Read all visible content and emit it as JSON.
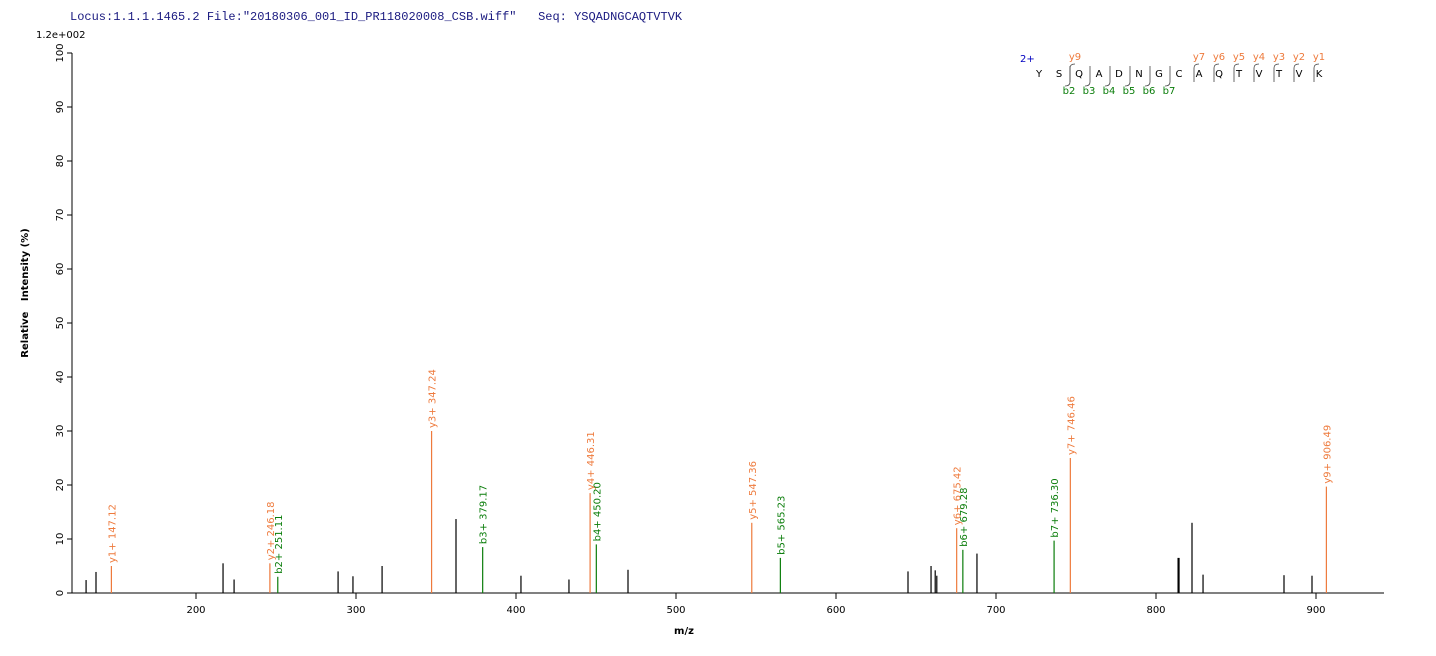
{
  "chart_data": {
    "type": "stem",
    "title": "Locus:1.1.1.1465.2 File:\"20180306_001_ID_PR118020008_CSB.wiff\"   Seq: YSQADNGCAQTVTVK",
    "scale_label": "1.2e+002",
    "xlabel": "m/z",
    "ylabel": "Relative   Intensity (%)",
    "xlim": [
      122.5,
      942.5
    ],
    "ylim": [
      0,
      100
    ],
    "xticks": [
      200,
      300,
      400,
      500,
      600,
      700,
      800,
      900
    ],
    "yticks": [
      0,
      10,
      20,
      30,
      40,
      50,
      60,
      70,
      80,
      90,
      100
    ],
    "series": [
      {
        "color": "#000000",
        "x": [
          131.3,
          137.5,
          216.9,
          223.8,
          288.8,
          298.1,
          316.3,
          362.5,
          403.1,
          433.1,
          470.0,
          645.0,
          659.4,
          662.0,
          663.0,
          688.1,
          813.8,
          814.4,
          822.5,
          829.4,
          880.0,
          897.5
        ],
        "values": [
          2.4,
          3.9,
          5.5,
          2.5,
          4.0,
          3.1,
          5.0,
          13.7,
          3.2,
          2.5,
          4.3,
          4.0,
          5.0,
          4.2,
          3.2,
          7.3,
          6.5,
          6.5,
          13.0,
          3.4,
          3.3,
          3.2
        ]
      },
      {
        "color": "#ee7a3c",
        "x": [
          147.12,
          246.18,
          347.24,
          446.31,
          547.36,
          675.42,
          746.46,
          906.49
        ],
        "values": [
          5.0,
          5.5,
          30.0,
          18.5,
          13.0,
          12.0,
          25.0,
          19.7
        ],
        "peak_labels": [
          "y1+ 147.12",
          "y2+ 246.18",
          "y3+ 347.24",
          "y4+ 446.31",
          "y5+ 547.36",
          "y6+ 675.42",
          "y7+ 746.46",
          "y9+ 906.49"
        ]
      },
      {
        "color": "#0a7d0a",
        "x": [
          251.11,
          379.17,
          450.2,
          565.23,
          679.28,
          736.3
        ],
        "values": [
          3.0,
          8.5,
          9.0,
          6.5,
          8.0,
          9.7
        ],
        "peak_labels": [
          "b2+ 251.11",
          "b3+ 379.17",
          "b4+ 450.20",
          "b5+ 565.23",
          "b6+ 679.28",
          "b7+ 736.30"
        ]
      }
    ],
    "sequence": {
      "charge": "2+",
      "residues": [
        "Y",
        "S",
        "Q",
        "A",
        "D",
        "N",
        "G",
        "C",
        "A",
        "Q",
        "T",
        "V",
        "T",
        "V",
        "K"
      ],
      "y_ions": [
        "y9",
        "y7",
        "y6",
        "y5",
        "y4",
        "y3",
        "y2",
        "y1"
      ],
      "b_ions": [
        "b2",
        "b3",
        "b4",
        "b5",
        "b6",
        "b7"
      ]
    }
  }
}
